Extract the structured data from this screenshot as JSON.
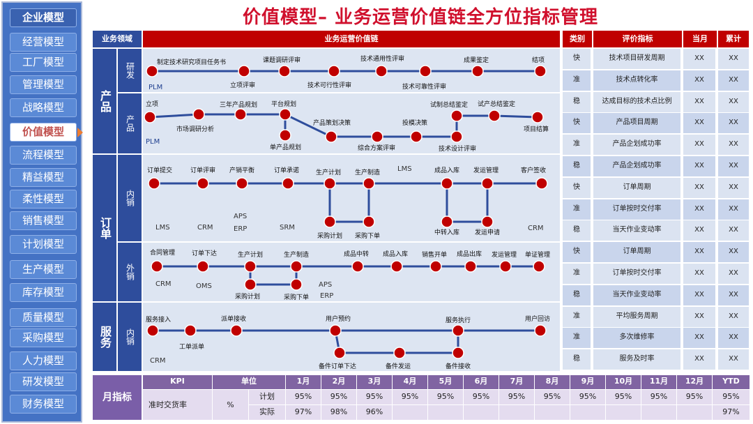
{
  "title": "价值模型– 业务运营价值链全方位指标管理",
  "sidebar": {
    "items": [
      {
        "label": "企业模型"
      },
      {
        "label": "经营模型"
      },
      {
        "label": "工厂模型"
      },
      {
        "label": "管理模型"
      },
      {
        "label": "战略模型"
      },
      {
        "label": "价值模型"
      },
      {
        "label": "流程模型"
      },
      {
        "label": "精益模型"
      },
      {
        "label": "柔性模型"
      },
      {
        "label": "销售模型"
      },
      {
        "label": "计划模型"
      },
      {
        "label": "生产模型"
      },
      {
        "label": "库存模型"
      },
      {
        "label": "质量模型"
      },
      {
        "label": "采购模型"
      },
      {
        "label": "人力模型"
      },
      {
        "label": "研发模型"
      },
      {
        "label": "财务模型"
      }
    ]
  },
  "headers": {
    "domain": "业务领域",
    "chain": "业务运营价值链",
    "category": "类别",
    "indicator": "评价指标",
    "month": "当月",
    "cumulative": "累计"
  },
  "domains": {
    "product": "产品",
    "order": "订单",
    "service": "服务",
    "rd": "研发",
    "prod": "产品",
    "domestic": "内销",
    "export": "外销",
    "service_domestic": "内销"
  },
  "chains": {
    "rd": {
      "system": "PLM",
      "nodes": [
        "制定技术研究项目任务书",
        "立项评审",
        "课题调研评审",
        "技术可行性评审",
        "技术通用性评审",
        "技术可靠性评审",
        "成果鉴定",
        "结项"
      ]
    },
    "product": {
      "system": "PLM",
      "nodes": [
        "立项",
        "市场调研分析",
        "三年产品规划",
        "平台规划",
        "单产品规划",
        "产品策划决策",
        "综合方案评审",
        "投模决策",
        "试制总结鉴定",
        "技术设计评审",
        "试产总结鉴定",
        "项目结算"
      ]
    },
    "domestic": {
      "nodes": [
        "订单提交",
        "订单评审",
        "产销平衡",
        "订单承诺",
        "生产计划",
        "生产制造",
        "采购计划",
        "采购下单",
        "成品入库",
        "发运管理",
        "中转入库",
        "发运申请",
        "客户签收"
      ],
      "systems": [
        "LMS",
        "CRM",
        "APS",
        "ERP",
        "SRM",
        "LMS",
        "CRM"
      ]
    },
    "export": {
      "nodes": [
        "合同管理",
        "订单下达",
        "生产计划",
        "生产制造",
        "采购计划",
        "采购下单",
        "成品中转",
        "成品入库",
        "销售开单",
        "成品出库",
        "发运管理",
        "单证管理"
      ],
      "systems": [
        "CRM",
        "OMS",
        "APS",
        "ERP"
      ]
    },
    "service": {
      "system": "CRM",
      "nodes": [
        "服务接入",
        "工单派单",
        "派单接收",
        "用户预约",
        "备件订单下达",
        "备件发运",
        "备件接收",
        "服务执行",
        "用户回访"
      ]
    }
  },
  "kpis": [
    {
      "category": "快",
      "indicator": "技术项目研发周期",
      "month": "XX",
      "cumulative": "XX"
    },
    {
      "category": "准",
      "indicator": "技术点转化率",
      "month": "XX",
      "cumulative": "XX"
    },
    {
      "category": "稳",
      "indicator": "达成目标的技术点比例",
      "month": "XX",
      "cumulative": "XX"
    },
    {
      "category": "快",
      "indicator": "产品项目周期",
      "month": "XX",
      "cumulative": "XX"
    },
    {
      "category": "准",
      "indicator": "产品企划成功率",
      "month": "XX",
      "cumulative": "XX"
    },
    {
      "category": "稳",
      "indicator": "产品企划成功率",
      "month": "XX",
      "cumulative": "XX"
    },
    {
      "category": "快",
      "indicator": "订单周期",
      "month": "XX",
      "cumulative": "XX"
    },
    {
      "category": "准",
      "indicator": "订单按时交付率",
      "month": "XX",
      "cumulative": "XX"
    },
    {
      "category": "稳",
      "indicator": "当天作业变动率",
      "month": "XX",
      "cumulative": "XX"
    },
    {
      "category": "快",
      "indicator": "订单周期",
      "month": "XX",
      "cumulative": "XX"
    },
    {
      "category": "准",
      "indicator": "订单按时交付率",
      "month": "XX",
      "cumulative": "XX"
    },
    {
      "category": "稳",
      "indicator": "当天作业变动率",
      "month": "XX",
      "cumulative": "XX"
    },
    {
      "category": "准",
      "indicator": "平均服务周期",
      "month": "XX",
      "cumulative": "XX"
    },
    {
      "category": "准",
      "indicator": "多次维修率",
      "month": "XX",
      "cumulative": "XX"
    },
    {
      "category": "稳",
      "indicator": "服务及时率",
      "month": "XX",
      "cumulative": "XX"
    }
  ],
  "monthly": {
    "label": "月指标",
    "headers": [
      "KPI",
      "单位",
      "1月",
      "2月",
      "3月",
      "4月",
      "5月",
      "6月",
      "7月",
      "8月",
      "9月",
      "10月",
      "11月",
      "12月",
      "YTD"
    ],
    "kpi_name": "准时交货率",
    "unit": "%",
    "rows": [
      {
        "label": "计划",
        "values": [
          "95%",
          "95%",
          "95%",
          "95%",
          "95%",
          "95%",
          "95%",
          "95%",
          "95%",
          "95%",
          "95%",
          "95%",
          "95%"
        ]
      },
      {
        "label": "实际",
        "values": [
          "97%",
          "98%",
          "96%",
          "",
          "",
          "",
          "",
          "",
          "",
          "",
          "",
          "",
          "97%"
        ]
      }
    ]
  },
  "colors": {
    "node": "#c00000",
    "line": "#2e4d9c",
    "accent": "#d0102d",
    "active_arrow": "#ed7d31"
  }
}
